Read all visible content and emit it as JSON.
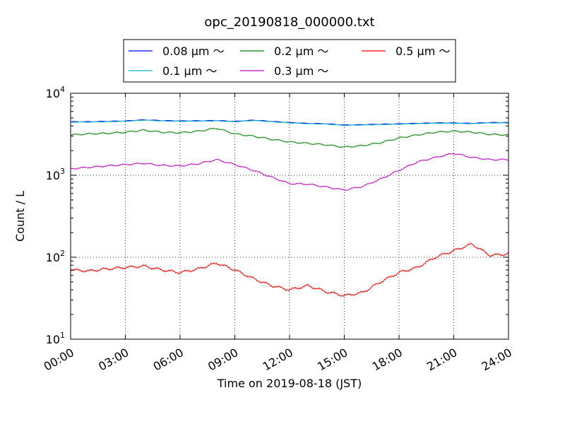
{
  "chart_data": {
    "type": "line",
    "title": "opc_20190818_000000.txt",
    "xlabel": "Time on 2019-08-18 (JST)",
    "ylabel": "Count / L",
    "x_unit": "hours",
    "xlim": [
      0,
      24
    ],
    "ylim": [
      10,
      10000
    ],
    "yscale": "log",
    "grid": true,
    "legend_position": "top",
    "xticks": [
      {
        "value": 0,
        "label": "00:00"
      },
      {
        "value": 3,
        "label": "03:00"
      },
      {
        "value": 6,
        "label": "06:00"
      },
      {
        "value": 9,
        "label": "09:00"
      },
      {
        "value": 12,
        "label": "12:00"
      },
      {
        "value": 15,
        "label": "15:00"
      },
      {
        "value": 18,
        "label": "18:00"
      },
      {
        "value": 21,
        "label": "21:00"
      },
      {
        "value": 24,
        "label": "24:00"
      }
    ],
    "yticks": [
      {
        "value": 10,
        "base": "10",
        "exp": "1"
      },
      {
        "value": 100,
        "base": "10",
        "exp": "2"
      },
      {
        "value": 1000,
        "base": "10",
        "exp": "3"
      },
      {
        "value": 10000,
        "base": "10",
        "exp": "4"
      }
    ],
    "x": [
      0,
      1,
      2,
      3,
      4,
      5,
      6,
      7,
      8,
      9,
      10,
      11,
      12,
      13,
      14,
      15,
      16,
      17,
      18,
      19,
      20,
      21,
      22,
      23,
      24
    ],
    "series": [
      {
        "name": "0.08 μm ～",
        "color": "#0000ff",
        "values": [
          4500,
          4500,
          4550,
          4600,
          4750,
          4650,
          4600,
          4620,
          4650,
          4550,
          4700,
          4550,
          4400,
          4300,
          4250,
          4100,
          4150,
          4200,
          4250,
          4300,
          4350,
          4350,
          4300,
          4400,
          4400
        ]
      },
      {
        "name": "0.1 μm ～",
        "color": "#00bfbf",
        "values": [
          4450,
          4450,
          4500,
          4550,
          4700,
          4600,
          4550,
          4570,
          4600,
          4500,
          4650,
          4500,
          4350,
          4250,
          4200,
          4050,
          4100,
          4150,
          4200,
          4250,
          4300,
          4300,
          4250,
          4350,
          4350
        ]
      },
      {
        "name": "0.2 μm ～",
        "color": "#008000",
        "values": [
          3100,
          3200,
          3250,
          3350,
          3550,
          3350,
          3300,
          3450,
          3750,
          3200,
          3000,
          2750,
          2550,
          2450,
          2350,
          2200,
          2300,
          2500,
          2850,
          3100,
          3350,
          3450,
          3350,
          3150,
          3100
        ]
      },
      {
        "name": "0.3 μm ～",
        "color": "#bf00bf",
        "values": [
          1200,
          1250,
          1300,
          1350,
          1400,
          1320,
          1300,
          1380,
          1550,
          1350,
          1150,
          950,
          790,
          780,
          720,
          660,
          730,
          900,
          1150,
          1450,
          1650,
          1850,
          1650,
          1550,
          1550
        ]
      },
      {
        "name": "0.5 μm ～",
        "color": "#ff0000",
        "values": [
          70,
          68,
          72,
          75,
          78,
          70,
          65,
          72,
          85,
          70,
          55,
          45,
          40,
          45,
          38,
          34,
          37,
          50,
          65,
          75,
          100,
          120,
          145,
          105,
          110
        ]
      }
    ],
    "legend": {
      "columns": 3
    }
  }
}
